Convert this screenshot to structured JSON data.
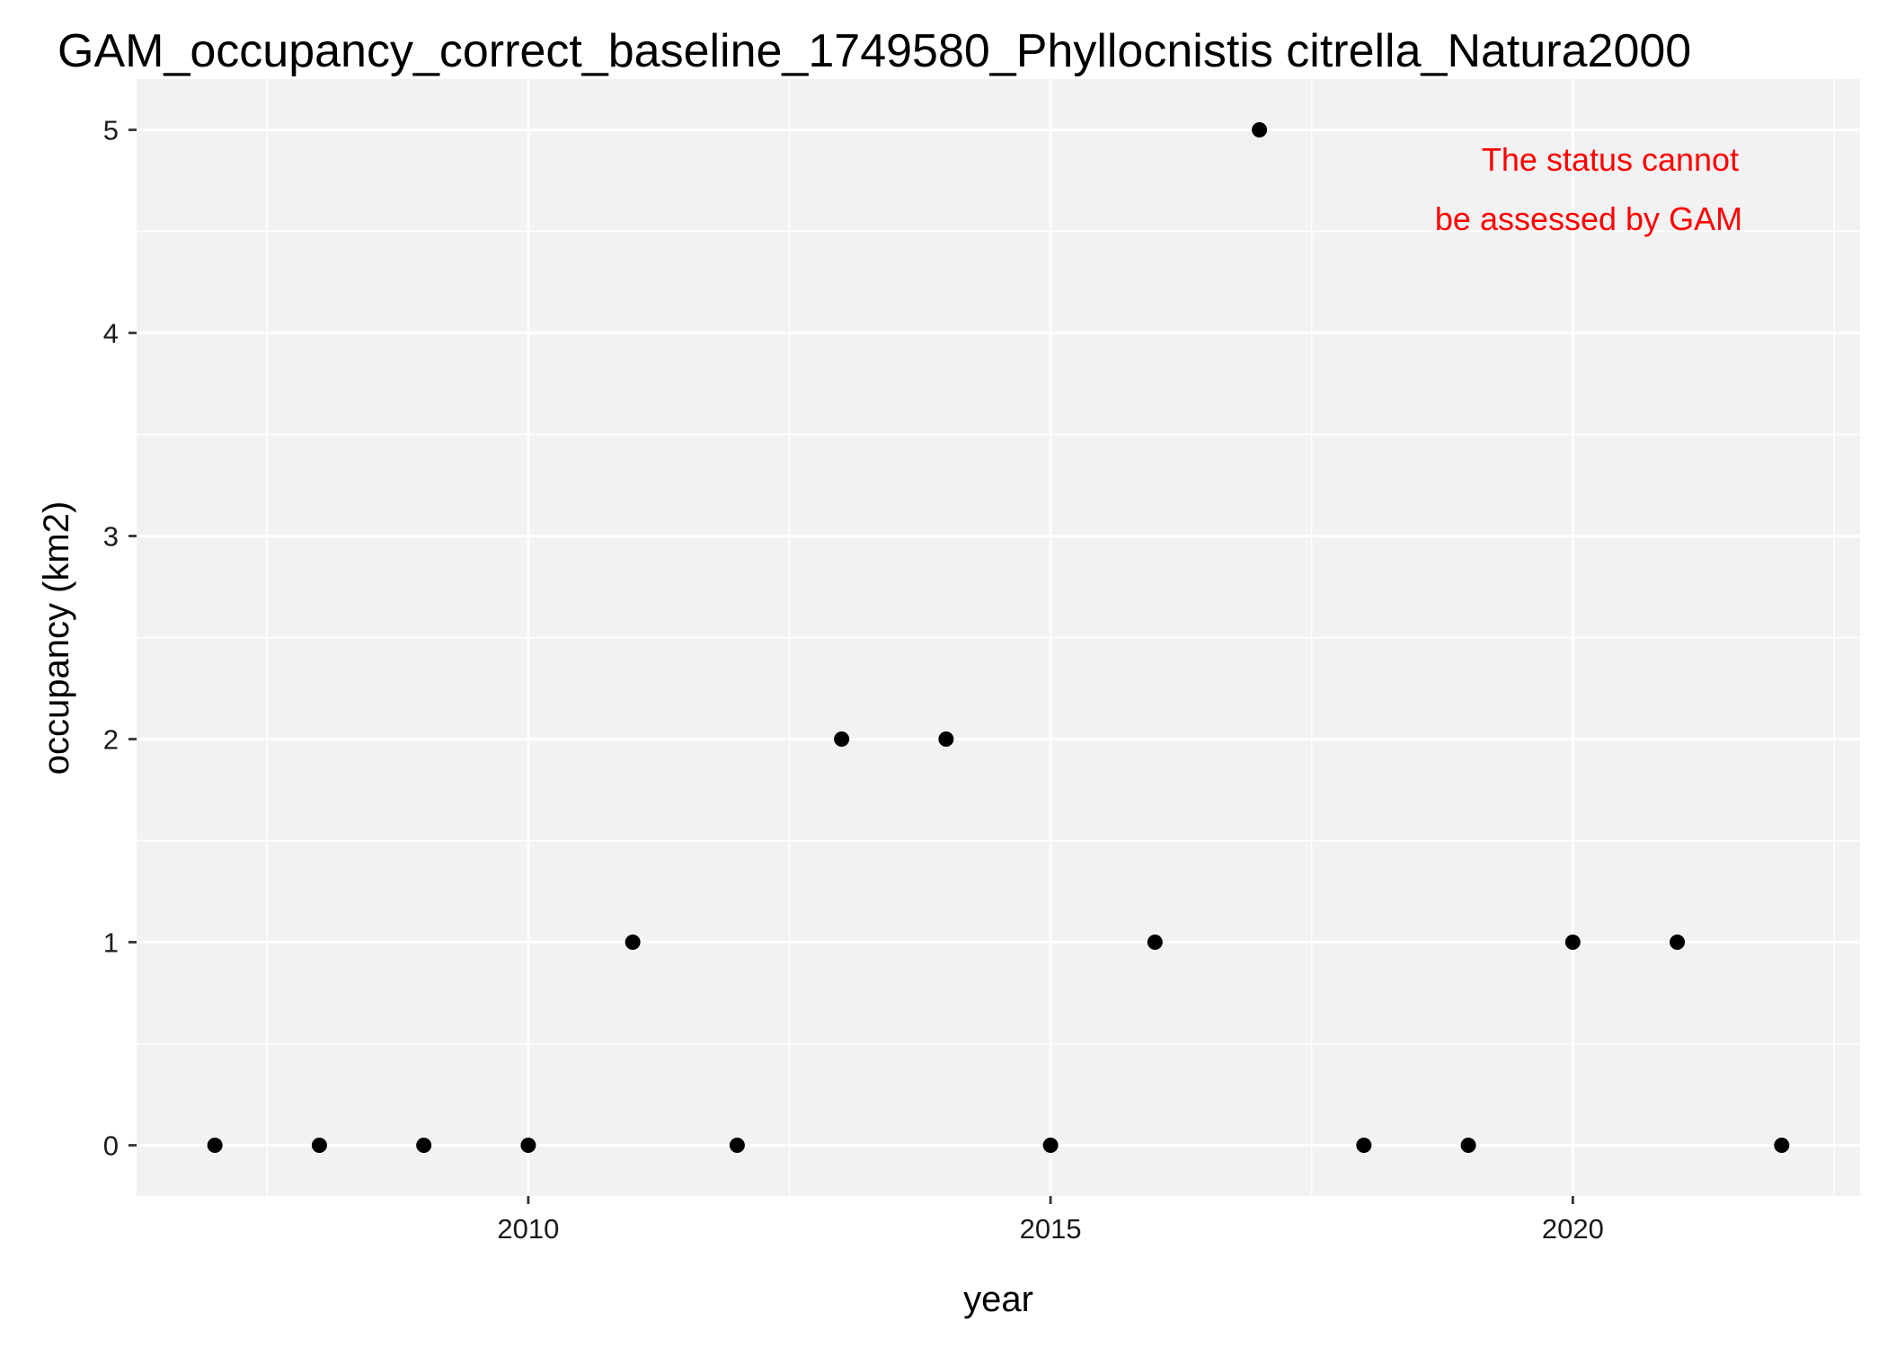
{
  "chart_data": {
    "type": "scatter",
    "title": "GAM_occupancy_correct_baseline_1749580_Phyllocnistis citrella_Natura2000",
    "xlabel": "year",
    "ylabel": "occupancy (km2)",
    "x": [
      2007,
      2008,
      2009,
      2010,
      2011,
      2012,
      2013,
      2014,
      2015,
      2016,
      2017,
      2018,
      2019,
      2020,
      2021,
      2022
    ],
    "y": [
      0,
      0,
      0,
      0,
      1,
      0,
      2,
      2,
      0,
      1,
      5,
      0,
      0,
      1,
      1,
      0
    ],
    "xlim": [
      2006.25,
      2022.75
    ],
    "ylim": [
      -0.25,
      5.25
    ],
    "x_ticks": [
      2010,
      2015,
      2020
    ],
    "x_tick_labels": [
      "2010",
      "2015",
      "2020"
    ],
    "x_minor_ticks": [
      2007.5,
      2012.5,
      2017.5,
      2022.5
    ],
    "y_ticks": [
      0,
      1,
      2,
      3,
      4,
      5
    ],
    "y_tick_labels": [
      "0",
      "1",
      "2",
      "3",
      "4",
      "5"
    ],
    "y_minor_ticks": [
      0.5,
      1.5,
      2.5,
      3.5,
      4.5
    ],
    "grid": true,
    "annotation": {
      "lines": [
        "The status cannot",
        "be assessed by GAM"
      ],
      "color": "#ff0000"
    },
    "panel_color": "#f2f2f2",
    "grid_color": "#ffffff",
    "point_color": "#000000"
  }
}
